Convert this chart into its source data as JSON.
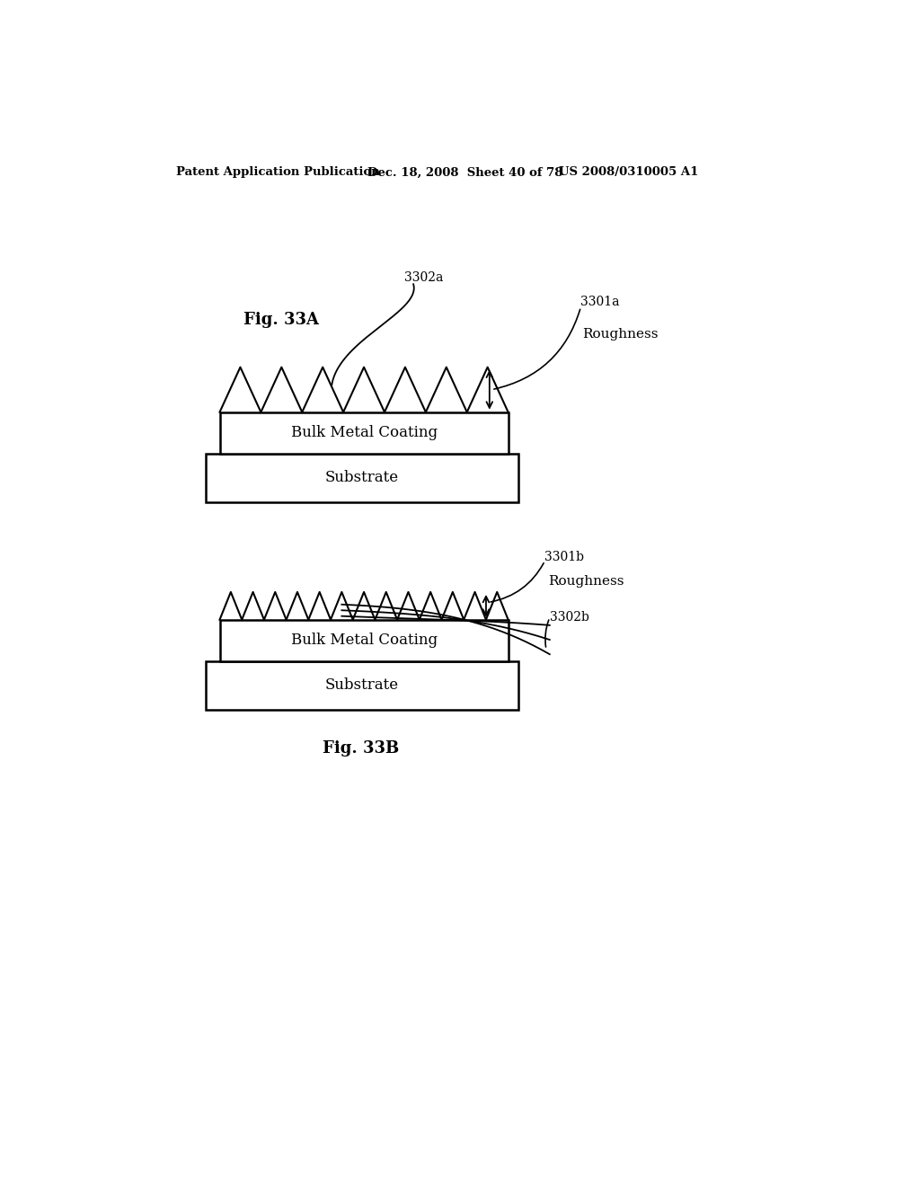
{
  "header_left": "Patent Application Publication",
  "header_mid": "Dec. 18, 2008  Sheet 40 of 78",
  "header_right": "US 2008/0310005 A1",
  "fig_a_label": "Fig. 33A",
  "fig_b_label": "Fig. 33B",
  "label_3302a": "3302a",
  "label_3301a": "3301a",
  "label_3302b": "3302b",
  "label_3301b": "3301b",
  "label_roughness": "Roughness",
  "label_bulk": "Bulk Metal Coating",
  "label_substrate": "Substrate",
  "bg_color": "#ffffff",
  "line_color": "#000000"
}
